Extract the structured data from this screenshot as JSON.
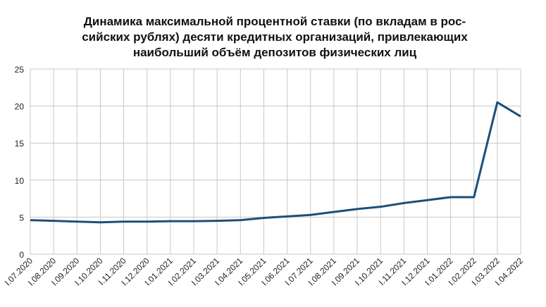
{
  "chart_data": {
    "type": "line",
    "title": [
      "Динамика максимальной процентной ставки (по вкладам в рос-",
      "сийских рублях) десяти кредитных организаций, привлекающих",
      "наибольший объём депозитов физических лиц"
    ],
    "categories": [
      "I.07.2020",
      "I.08.2020",
      "I.09.2020",
      "I.10.2020",
      "I.11.2020",
      "I.12.2020",
      "I.01.2021",
      "I.02.2021",
      "I.03.2021",
      "I.04.2021",
      "I.05.2021",
      "I.06.2021",
      "I.07.2021",
      "I.08.2021",
      "I.09.2021",
      "I.10.2021",
      "I.11.2021",
      "I.12.2021",
      "I.01.2022",
      "I.02.2022",
      "I.03.2022",
      "I.04.2022"
    ],
    "values": [
      4.6,
      4.5,
      4.4,
      4.3,
      4.4,
      4.4,
      4.45,
      4.45,
      4.5,
      4.6,
      4.9,
      5.1,
      5.3,
      5.7,
      6.1,
      6.4,
      6.9,
      7.3,
      7.7,
      7.7,
      20.5,
      18.6
    ],
    "color": "#1b4f7a",
    "ylim": [
      0,
      25
    ],
    "yticks": [
      0,
      5,
      10,
      15,
      20,
      25
    ],
    "grid": true
  }
}
